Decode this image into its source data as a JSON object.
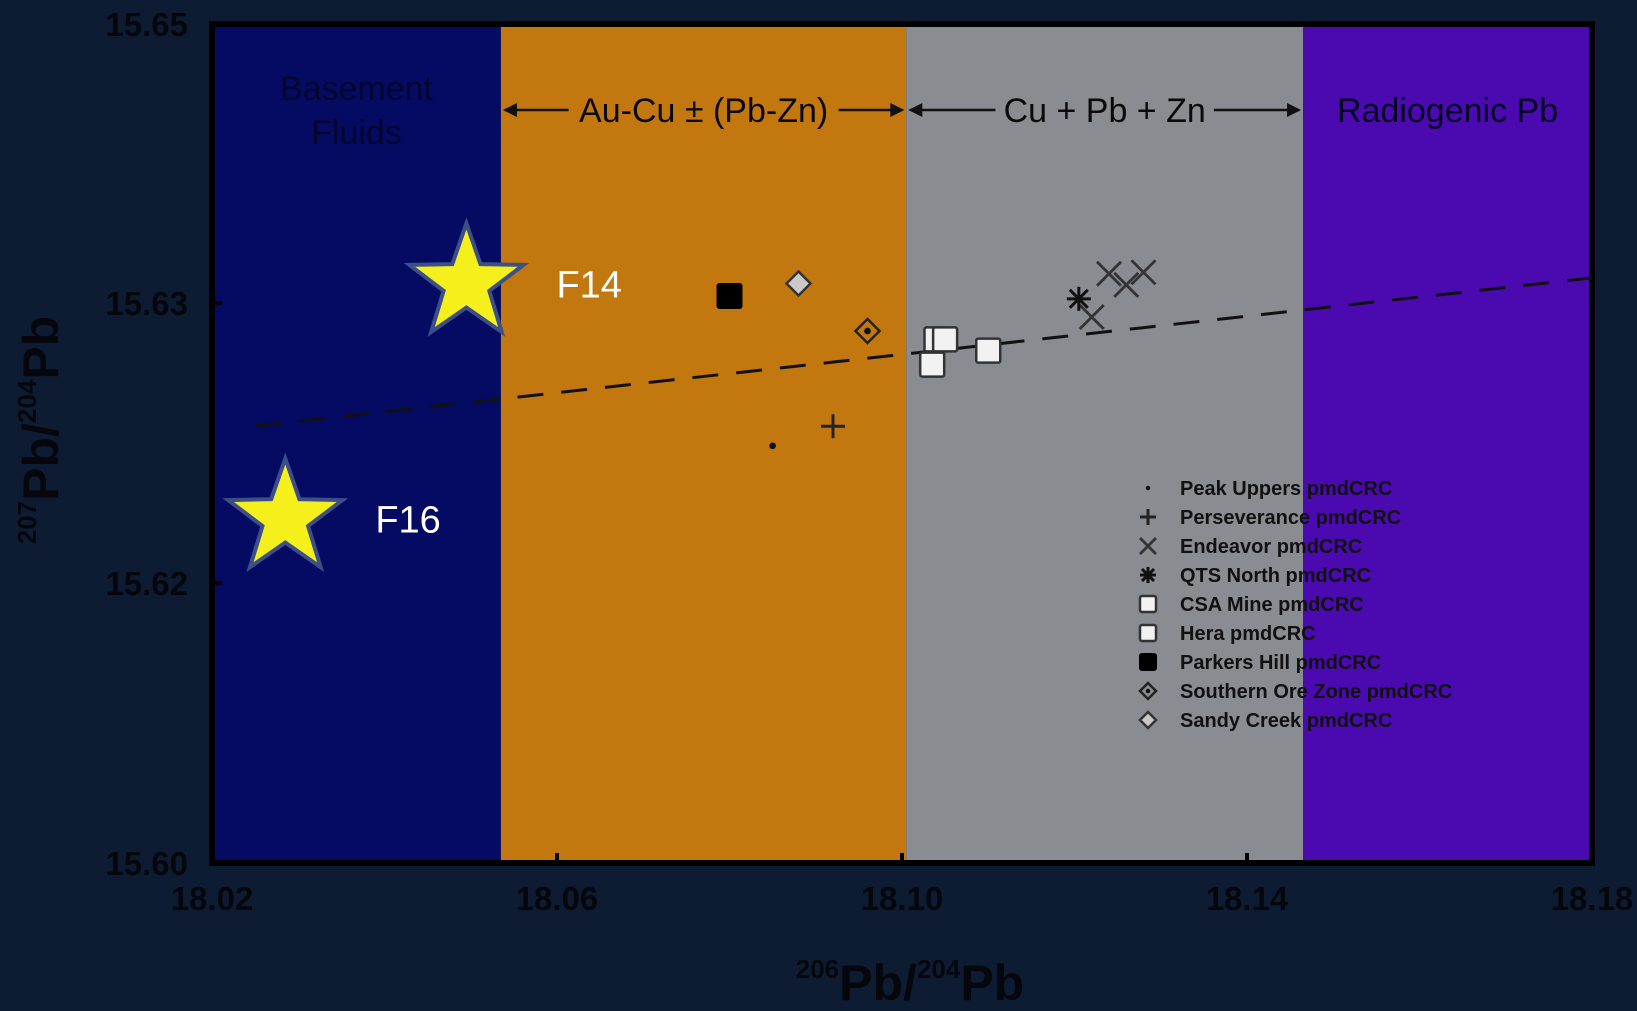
{
  "chart_data": {
    "type": "scatter",
    "xlabel": {
      "sup1": "206",
      "main1": "Pb/",
      "sup2": "204",
      "main2": "Pb"
    },
    "ylabel": {
      "sup1": "207",
      "main1": "Pb/",
      "sup2": "204",
      "main2": "Pb"
    },
    "xlim": [
      18.02,
      18.18
    ],
    "ylim": [
      15.6,
      15.65
    ],
    "x_ticks": [
      "18.02",
      "18.06",
      "18.10",
      "18.14",
      "18.18"
    ],
    "y_ticks": [
      "15.60",
      "15.62",
      "15.63",
      "15.65"
    ],
    "y_tick_values": [
      15.6,
      15.62,
      15.63,
      15.65
    ],
    "zones": [
      {
        "label": "Basement Fluids",
        "x_start": 18.02,
        "x_end": 18.0535,
        "color": "#050b63",
        "text_color": "#03062e",
        "arrows": false
      },
      {
        "label": "Au-Cu ± (Pb-Zn)",
        "x_start": 18.0535,
        "x_end": 18.1005,
        "color": "#c2780e",
        "text_color": "#0a0a0a",
        "arrows": true
      },
      {
        "label": "Cu + Pb + Zn",
        "x_start": 18.1005,
        "x_end": 18.1465,
        "color": "#898c91",
        "text_color": "#0a0a0a",
        "arrows": true
      },
      {
        "label": "Radiogenic Pb",
        "x_start": 18.1465,
        "x_end": 18.18,
        "color": "#4a0ab0",
        "text_color": "#050520",
        "arrows": false
      }
    ],
    "trend_line": {
      "style": "dashed",
      "x": [
        18.025,
        18.18
      ],
      "y": [
        15.6256,
        15.6318
      ]
    },
    "series": [
      {
        "name": "Peak Uppers pmdCRC",
        "marker": "dot",
        "points": [
          [
            18.085,
            15.6249
          ]
        ]
      },
      {
        "name": "Perseverance pmdCRC",
        "marker": "plus",
        "points": [
          [
            18.092,
            15.6256
          ]
        ]
      },
      {
        "name": "Endeavor pmdCRC",
        "marker": "x",
        "points": [
          [
            18.122,
            15.6295
          ],
          [
            18.126,
            15.6313
          ],
          [
            18.124,
            15.6321
          ],
          [
            18.128,
            15.6322
          ]
        ]
      },
      {
        "name": "QTS North pmdCRC",
        "marker": "asterisk",
        "points": [
          [
            18.1205,
            15.6303
          ]
        ]
      },
      {
        "name": "CSA Mine pmdCRC",
        "marker": "square-open",
        "points": [
          [
            18.104,
            15.6287
          ],
          [
            18.11,
            15.6283
          ]
        ]
      },
      {
        "name": "Hera pmdCRC",
        "marker": "square-open",
        "points": [
          [
            18.105,
            15.6287
          ],
          [
            18.1035,
            15.6278
          ]
        ]
      },
      {
        "name": "Parkers Hill pmdCRC",
        "marker": "square-filled",
        "points": [
          [
            18.08,
            15.6305
          ]
        ]
      },
      {
        "name": "Southern Ore Zone pmdCRC",
        "marker": "diamond-dot",
        "points": [
          [
            18.096,
            15.629
          ]
        ]
      },
      {
        "name": "Sandy Creek pmdCRC",
        "marker": "diamond-gray",
        "points": [
          [
            18.088,
            15.6314
          ]
        ]
      }
    ],
    "legend_position": "lower-right inside plot",
    "annotations": [
      {
        "label": "F14",
        "marker": "star",
        "color": "#f5f01c",
        "x": 18.0495,
        "y": 15.6314
      },
      {
        "label": "F16",
        "marker": "star",
        "color": "#f5f01c",
        "x": 18.0285,
        "y": 15.6223
      }
    ]
  }
}
